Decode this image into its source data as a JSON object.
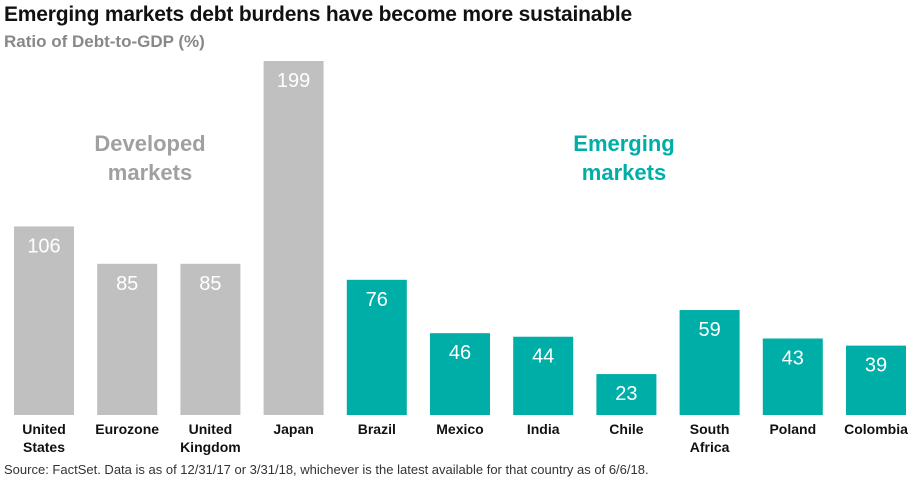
{
  "chart_data": {
    "type": "bar",
    "title": "Emerging markets debt burdens have become more sustainable",
    "subtitle": "Ratio of Debt-to-GDP (%)",
    "xlabel": "",
    "ylabel": "Ratio of Debt-to-GDP (%)",
    "ylim": [
      0,
      199
    ],
    "grid": false,
    "categories": [
      [
        "United",
        "States"
      ],
      [
        "Eurozone"
      ],
      [
        "United",
        "Kingdom"
      ],
      [
        "Japan"
      ],
      [
        "Brazil"
      ],
      [
        "Mexico"
      ],
      [
        "India"
      ],
      [
        "Chile"
      ],
      [
        "South",
        "Africa"
      ],
      [
        "Poland"
      ],
      [
        "Colombia"
      ]
    ],
    "values": [
      106,
      85,
      85,
      199,
      76,
      46,
      44,
      23,
      59,
      43,
      39
    ],
    "groups": [
      "developed",
      "developed",
      "developed",
      "developed",
      "emerging",
      "emerging",
      "emerging",
      "emerging",
      "emerging",
      "emerging",
      "emerging"
    ],
    "group_labels": {
      "developed": [
        "Developed",
        "markets"
      ],
      "emerging": [
        "Emerging",
        "markets"
      ]
    },
    "colors": {
      "developed": "#c0c0c0",
      "emerging": "#00aea8",
      "developed_label": "#a0a0a0",
      "emerging_label": "#00aea8"
    },
    "source": "Source: FactSet. Data is as of 12/31/17 or 3/31/18, whichever is the latest available for that country as of 6/6/18."
  }
}
